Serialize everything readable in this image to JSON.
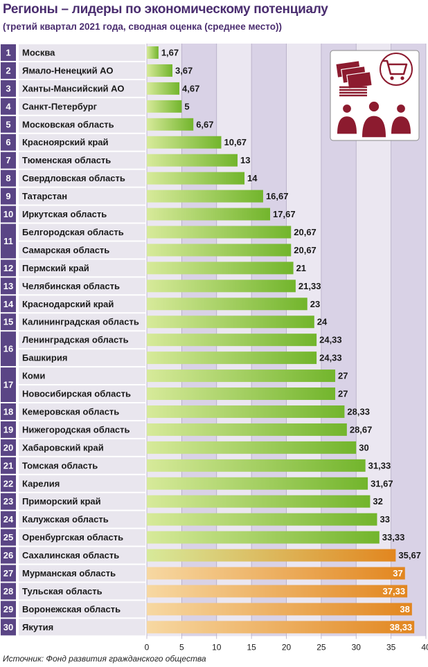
{
  "title": "Регионы – лидеры по экономическому потенциалу",
  "subtitle": "(третий квартал 2021 года, сводная оценка (среднее место))",
  "source": "Источник: Фонд развития гражданского общества",
  "colors": {
    "rank_box": "#5a4585",
    "row_band": "#e9e6ee",
    "plot_band_a": "#d9d2e6",
    "plot_band_b": "#ebe7f1",
    "bar_green_light": "#d7ea9a",
    "bar_green_dark": "#72b52c",
    "bar_orange_light": "#f7d8a2",
    "bar_orange_dark": "#e2861f",
    "icon_color": "#8c1b2f"
  },
  "icon": {
    "name": "money-cart-people-icon"
  },
  "chart_data": {
    "type": "bar",
    "orientation": "horizontal",
    "categories": [
      "Москва",
      "Ямало-Ненецкий АО",
      "Ханты-Мансийский АО",
      "Санкт-Петербург",
      "Московская область",
      "Красноярский край",
      "Тюменская область",
      "Свердловская область",
      "Татарстан",
      "Иркутская область",
      "Белгородская область",
      "Самарская область",
      "Пермский край",
      "Челябинская область",
      "Краснодарский край",
      "Калининградская область",
      "Ленинградская область",
      "Башкирия",
      "Коми",
      "Новосибирская область",
      "Кемеровская область",
      "Нижегородская область",
      "Хабаровский край",
      "Томская область",
      "Карелия",
      "Приморский край",
      "Калужская область",
      "Оренбургская область",
      "Сахалинская область",
      "Мурманская область",
      "Тульская область",
      "Воронежская область",
      "Якутия"
    ],
    "values": [
      1.67,
      3.67,
      4.67,
      5,
      6.67,
      10.67,
      13,
      14,
      16.67,
      17.67,
      20.67,
      20.67,
      21,
      21.33,
      23,
      24,
      24.33,
      24.33,
      27,
      27,
      28.33,
      28.67,
      30,
      31.33,
      31.67,
      32,
      33,
      33.33,
      35.67,
      37,
      37.33,
      38,
      38.33
    ],
    "value_labels": [
      "1,67",
      "3,67",
      "4,67",
      "5",
      "6,67",
      "10,67",
      "13",
      "14",
      "16,67",
      "17,67",
      "20,67",
      "20,67",
      "21",
      "21,33",
      "23",
      "24",
      "24,33",
      "24,33",
      "27",
      "27",
      "28,33",
      "28,67",
      "30",
      "31,33",
      "31,67",
      "32",
      "33",
      "33,33",
      "35,67",
      "37",
      "37,33",
      "38",
      "38,33"
    ],
    "ranks": [
      {
        "label": "1",
        "rows": 1
      },
      {
        "label": "2",
        "rows": 1
      },
      {
        "label": "3",
        "rows": 1
      },
      {
        "label": "4",
        "rows": 1
      },
      {
        "label": "5",
        "rows": 1
      },
      {
        "label": "6",
        "rows": 1
      },
      {
        "label": "7",
        "rows": 1
      },
      {
        "label": "8",
        "rows": 1
      },
      {
        "label": "9",
        "rows": 1
      },
      {
        "label": "10",
        "rows": 1
      },
      {
        "label": "11",
        "rows": 2
      },
      {
        "label": "12",
        "rows": 1
      },
      {
        "label": "13",
        "rows": 1
      },
      {
        "label": "14",
        "rows": 1
      },
      {
        "label": "15",
        "rows": 1
      },
      {
        "label": "16",
        "rows": 2
      },
      {
        "label": "17",
        "rows": 2
      },
      {
        "label": "18",
        "rows": 1
      },
      {
        "label": "19",
        "rows": 1
      },
      {
        "label": "20",
        "rows": 1
      },
      {
        "label": "21",
        "rows": 1
      },
      {
        "label": "22",
        "rows": 1
      },
      {
        "label": "23",
        "rows": 1
      },
      {
        "label": "24",
        "rows": 1
      },
      {
        "label": "25",
        "rows": 1
      },
      {
        "label": "26",
        "rows": 1
      },
      {
        "label": "27",
        "rows": 1
      },
      {
        "label": "28",
        "rows": 1
      },
      {
        "label": "29",
        "rows": 1
      },
      {
        "label": "30",
        "rows": 1
      }
    ],
    "x_ticks": [
      0,
      5,
      10,
      15,
      20,
      25,
      30,
      35,
      40
    ],
    "xlim": [
      0,
      40
    ],
    "labels_inside_from": 37,
    "orange_from": 35,
    "grid": true
  }
}
